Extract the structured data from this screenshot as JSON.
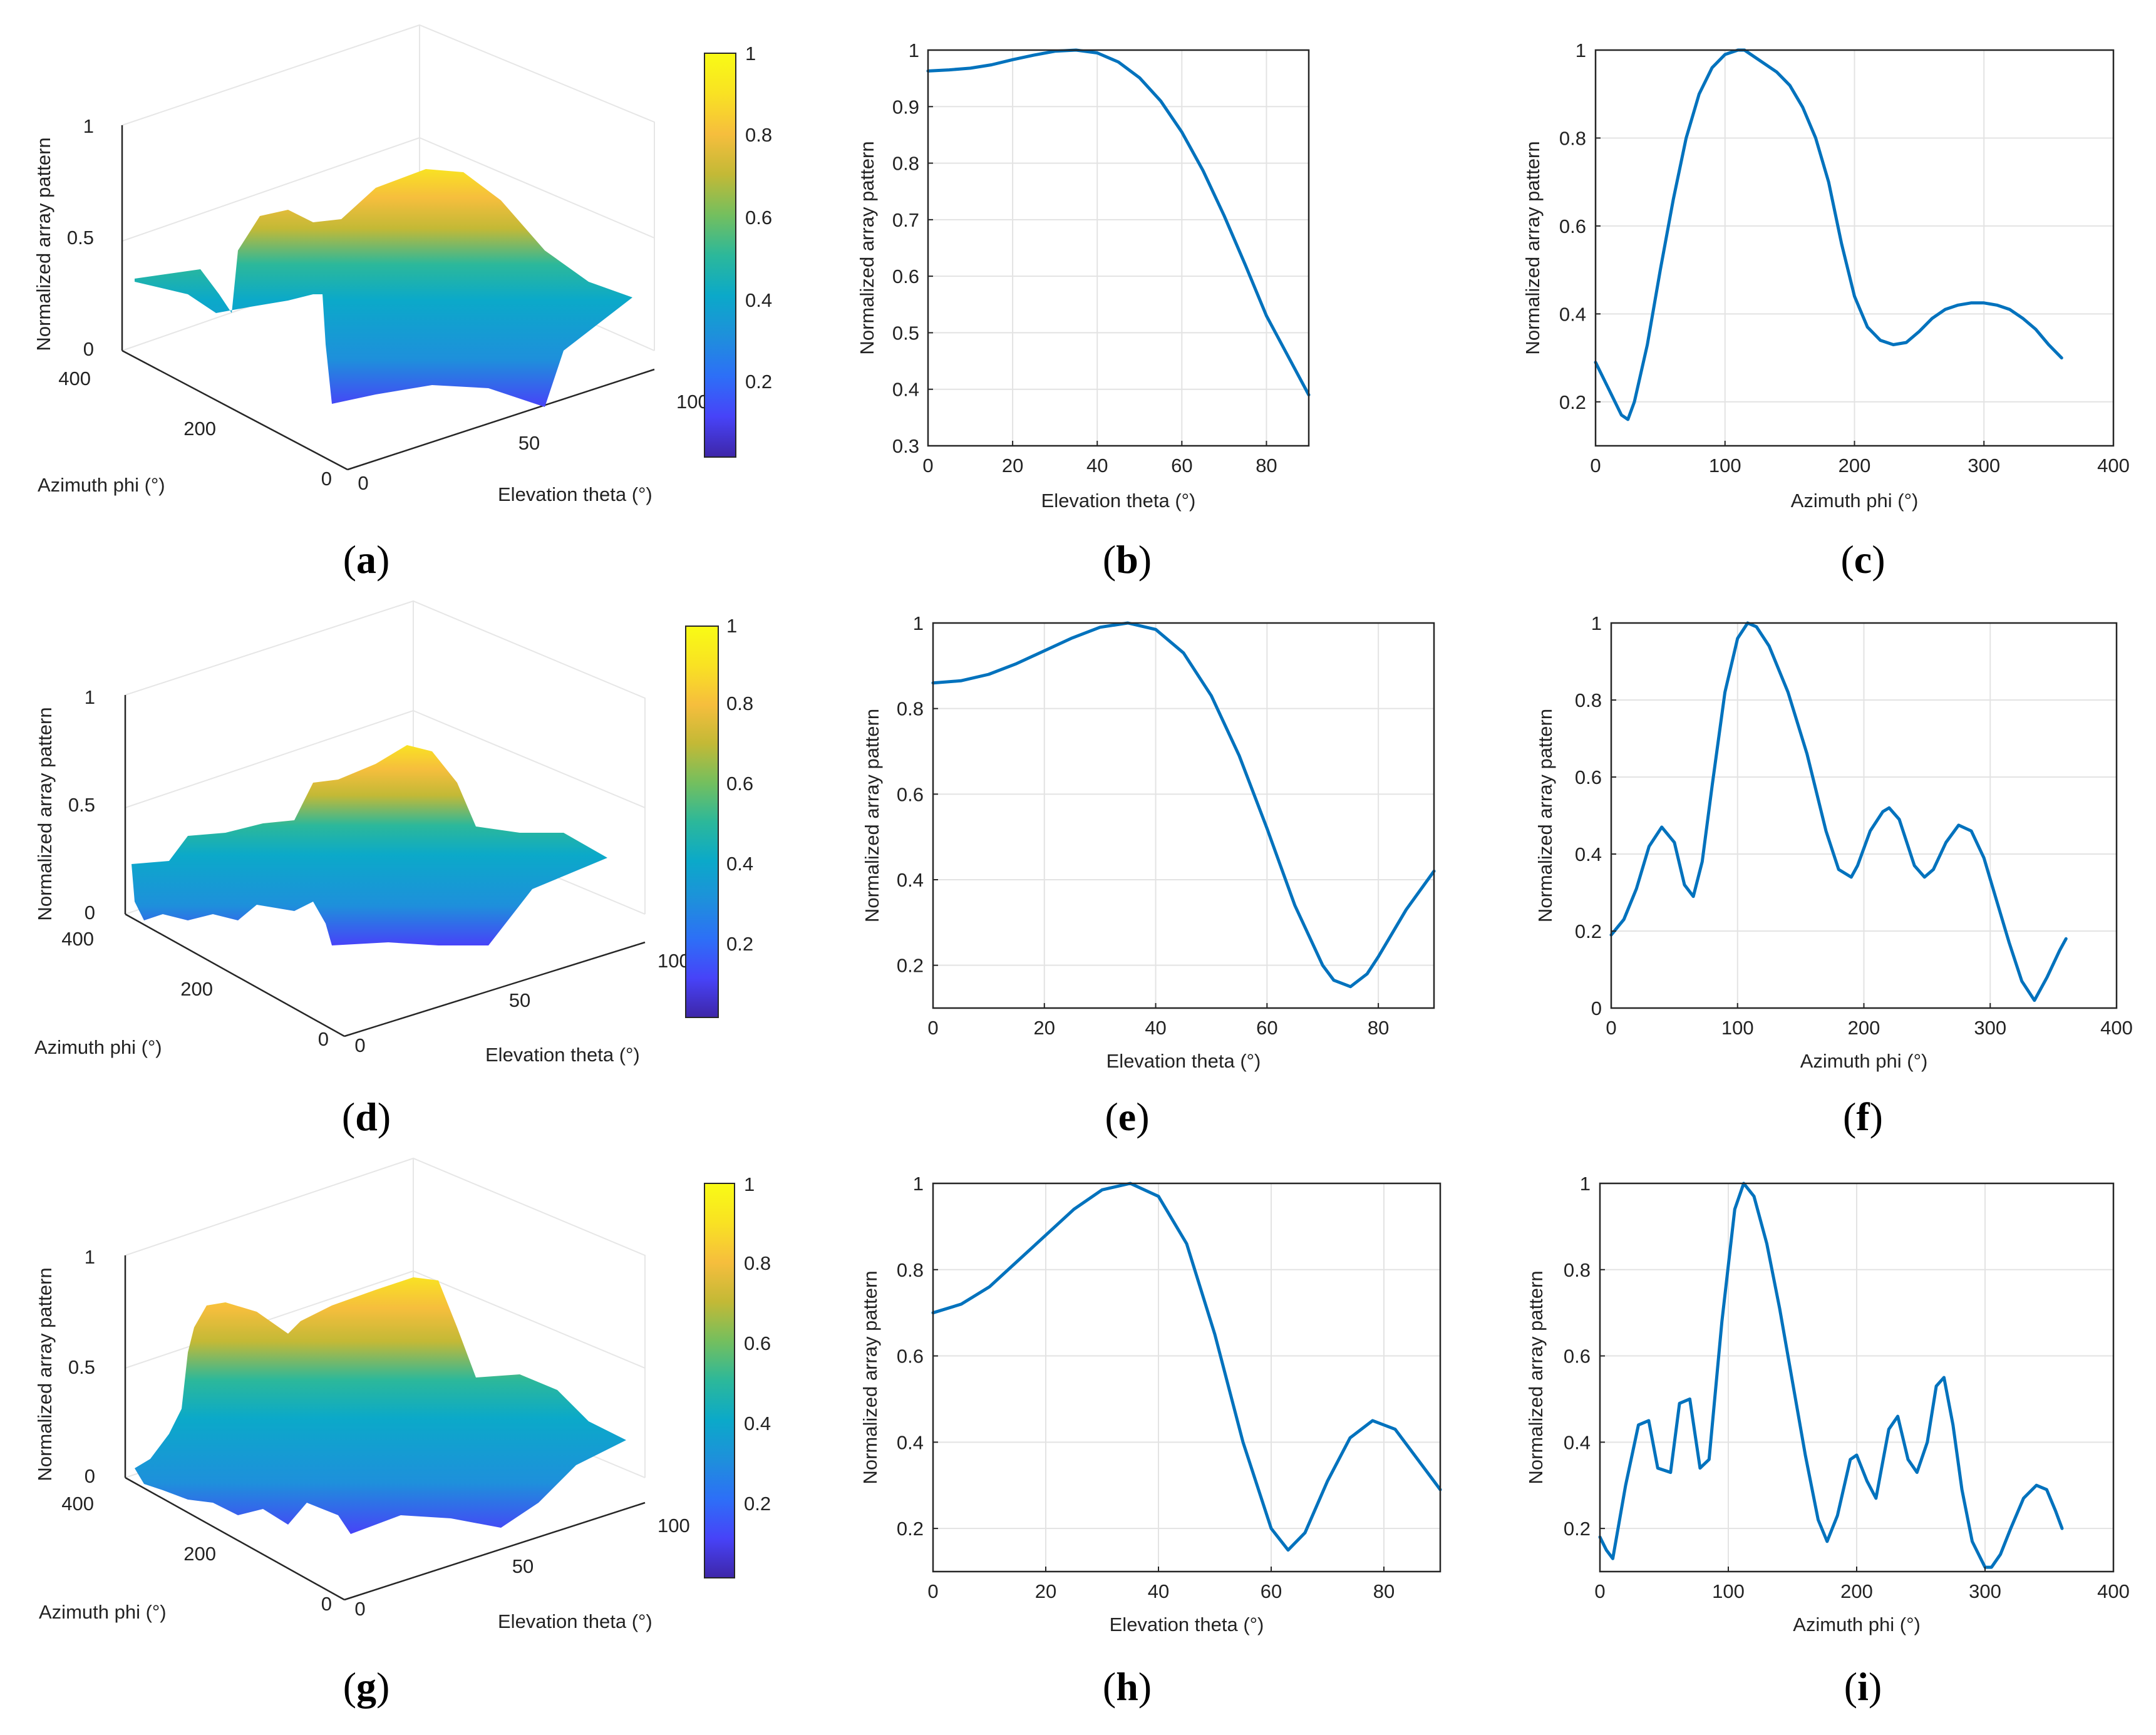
{
  "colors": {
    "line": "#0072bd",
    "grid": "#e3e3e3",
    "axis": "#262626",
    "parula": [
      "#3e26a8",
      "#4743f8",
      "#2d6ff7",
      "#1e90db",
      "#0ba9c9",
      "#2cb89a",
      "#74bf5e",
      "#c3b936",
      "#f6be3d",
      "#f9e223",
      "#f9fb15"
    ]
  },
  "chart_data": [
    {
      "id": "a",
      "panel_label": "a",
      "type": "surface",
      "zlabel": "Normalized array pattern",
      "xlabel": "Azimuth phi (°)",
      "ylabel": "Elevation theta (°)",
      "zticks": [
        "0",
        "0.5",
        "1"
      ],
      "xticks": [
        "0",
        "200",
        "400"
      ],
      "yticks": [
        "0",
        "50",
        "100"
      ],
      "colorbar_ticks": [
        "0.2",
        "0.4",
        "0.6",
        "0.8",
        "1"
      ],
      "elevation_cut": [
        0.965,
        0.97,
        0.99,
        1.0,
        0.96,
        0.84,
        0.64,
        0.39
      ],
      "azimuth_cut": [
        0.29,
        0.16,
        0.45,
        0.85,
        1.0,
        0.92,
        0.72,
        0.34,
        0.4,
        0.42,
        0.3
      ]
    },
    {
      "id": "b",
      "panel_label": "b",
      "type": "line",
      "xlabel": "Elevation theta (°)",
      "ylabel": "Normalized array pattern",
      "xlim": [
        0,
        90
      ],
      "ylim": [
        0.3,
        1
      ],
      "xticks": [
        0,
        20,
        40,
        60,
        80
      ],
      "yticks": [
        0.3,
        0.4,
        0.5,
        0.6,
        0.7,
        0.8,
        0.9,
        1
      ],
      "ytick_labels": [
        "0.3",
        "0.4",
        "0.5",
        "0.6",
        "0.7",
        "0.8",
        "0.9",
        "1"
      ],
      "x": [
        0,
        5,
        10,
        15,
        20,
        25,
        30,
        35,
        40,
        45,
        50,
        55,
        60,
        65,
        70,
        75,
        80,
        85,
        90
      ],
      "y": [
        0.963,
        0.965,
        0.968,
        0.974,
        0.983,
        0.991,
        0.998,
        1.0,
        0.995,
        0.979,
        0.951,
        0.91,
        0.855,
        0.787,
        0.707,
        0.62,
        0.53,
        0.46,
        0.39
      ]
    },
    {
      "id": "c",
      "panel_label": "c",
      "type": "line",
      "xlabel": "Azimuth phi (°)",
      "ylabel": "Normalized array pattern",
      "xlim": [
        0,
        400
      ],
      "ylim": [
        0.1,
        1
      ],
      "xticks": [
        0,
        100,
        200,
        300,
        400
      ],
      "yticks": [
        0.2,
        0.4,
        0.6,
        0.8,
        1
      ],
      "ytick_labels": [
        "0.2",
        "0.4",
        "0.6",
        "0.8",
        "1"
      ],
      "x": [
        0,
        10,
        20,
        25,
        30,
        40,
        50,
        60,
        70,
        80,
        90,
        100,
        110,
        115,
        120,
        130,
        140,
        150,
        160,
        170,
        180,
        190,
        200,
        210,
        220,
        230,
        240,
        250,
        260,
        270,
        280,
        290,
        300,
        310,
        320,
        330,
        340,
        350,
        360
      ],
      "y": [
        0.29,
        0.23,
        0.17,
        0.16,
        0.2,
        0.33,
        0.5,
        0.66,
        0.8,
        0.9,
        0.96,
        0.99,
        1.0,
        1.0,
        0.99,
        0.97,
        0.95,
        0.92,
        0.87,
        0.8,
        0.7,
        0.56,
        0.44,
        0.37,
        0.34,
        0.33,
        0.335,
        0.36,
        0.39,
        0.41,
        0.42,
        0.425,
        0.425,
        0.42,
        0.41,
        0.39,
        0.365,
        0.33,
        0.3
      ]
    },
    {
      "id": "d",
      "panel_label": "d",
      "type": "surface",
      "zlabel": "Normalized array pattern",
      "xlabel": "Azimuth phi (°)",
      "ylabel": "Elevation theta (°)",
      "zticks": [
        "0",
        "0.5",
        "1"
      ],
      "xticks": [
        "0",
        "200",
        "400"
      ],
      "yticks": [
        "0",
        "50",
        "100"
      ],
      "colorbar_ticks": [
        "0.2",
        "0.4",
        "0.6",
        "0.8",
        "1"
      ],
      "elevation_cut": [
        0.86,
        0.88,
        0.96,
        1.0,
        0.9,
        0.6,
        0.3,
        0.18,
        0.42
      ],
      "azimuth_cut": [
        0.19,
        0.47,
        0.29,
        0.85,
        1.0,
        0.7,
        0.34,
        0.52,
        0.34,
        0.47,
        0.2,
        0.02,
        0.18
      ]
    },
    {
      "id": "e",
      "panel_label": "e",
      "type": "line",
      "xlabel": "Elevation theta (°)",
      "ylabel": "Normalized array pattern",
      "xlim": [
        0,
        90
      ],
      "ylim": [
        0.1,
        1
      ],
      "xticks": [
        0,
        20,
        40,
        60,
        80
      ],
      "yticks": [
        0.2,
        0.4,
        0.6,
        0.8,
        1
      ],
      "ytick_labels": [
        "0.2",
        "0.4",
        "0.6",
        "0.8",
        "1"
      ],
      "x": [
        0,
        5,
        10,
        15,
        20,
        25,
        30,
        35,
        40,
        45,
        50,
        55,
        60,
        65,
        70,
        72,
        75,
        78,
        80,
        85,
        90
      ],
      "y": [
        0.86,
        0.865,
        0.88,
        0.905,
        0.935,
        0.965,
        0.99,
        1.0,
        0.985,
        0.93,
        0.83,
        0.69,
        0.52,
        0.34,
        0.2,
        0.165,
        0.15,
        0.18,
        0.22,
        0.33,
        0.42
      ]
    },
    {
      "id": "f",
      "panel_label": "f",
      "type": "line",
      "xlabel": "Azimuth phi (°)",
      "ylabel": "Normalized array pattern",
      "xlim": [
        0,
        400
      ],
      "ylim": [
        0,
        1
      ],
      "xticks": [
        0,
        100,
        200,
        300,
        400
      ],
      "yticks": [
        0,
        0.2,
        0.4,
        0.6,
        0.8,
        1
      ],
      "ytick_labels": [
        "0",
        "0.2",
        "0.4",
        "0.6",
        "0.8",
        "1"
      ],
      "x": [
        0,
        10,
        20,
        30,
        40,
        50,
        58,
        65,
        72,
        80,
        90,
        100,
        108,
        115,
        125,
        140,
        155,
        170,
        180,
        190,
        195,
        205,
        215,
        220,
        228,
        240,
        248,
        255,
        265,
        275,
        285,
        295,
        305,
        315,
        325,
        335,
        345,
        355,
        360
      ],
      "y": [
        0.19,
        0.23,
        0.31,
        0.42,
        0.47,
        0.43,
        0.32,
        0.29,
        0.38,
        0.58,
        0.82,
        0.96,
        1.0,
        0.99,
        0.94,
        0.82,
        0.66,
        0.46,
        0.36,
        0.34,
        0.37,
        0.46,
        0.51,
        0.52,
        0.49,
        0.37,
        0.34,
        0.36,
        0.43,
        0.475,
        0.46,
        0.39,
        0.28,
        0.17,
        0.07,
        0.02,
        0.08,
        0.15,
        0.18
      ]
    },
    {
      "id": "g",
      "panel_label": "g",
      "type": "surface",
      "zlabel": "Normalized array pattern",
      "xlabel": "Azimuth phi (°)",
      "ylabel": "Elevation theta (°)",
      "zticks": [
        "0",
        "0.5",
        "1"
      ],
      "xticks": [
        "0",
        "200",
        "400"
      ],
      "yticks": [
        "0",
        "50",
        "100"
      ],
      "colorbar_ticks": [
        "0.2",
        "0.4",
        "0.6",
        "0.8",
        "1"
      ],
      "elevation_cut": [
        0.7,
        0.78,
        0.92,
        1.0,
        0.85,
        0.45,
        0.15,
        0.35,
        0.45,
        0.29
      ],
      "azimuth_cut": [
        0.18,
        0.45,
        0.32,
        0.5,
        0.33,
        0.9,
        1.0,
        0.6,
        0.17,
        0.37,
        0.27,
        0.46,
        0.33,
        0.55,
        0.11,
        0.3,
        0.2
      ]
    },
    {
      "id": "h",
      "panel_label": "h",
      "type": "line",
      "xlabel": "Elevation theta (°)",
      "ylabel": "Normalized array pattern",
      "xlim": [
        0,
        90
      ],
      "ylim": [
        0.1,
        1
      ],
      "xticks": [
        0,
        20,
        40,
        60,
        80
      ],
      "yticks": [
        0.2,
        0.4,
        0.6,
        0.8,
        1
      ],
      "ytick_labels": [
        "0.2",
        "0.4",
        "0.6",
        "0.8",
        "1"
      ],
      "x": [
        0,
        5,
        10,
        15,
        20,
        25,
        30,
        35,
        40,
        45,
        50,
        55,
        60,
        63,
        66,
        70,
        74,
        78,
        82,
        86,
        90
      ],
      "y": [
        0.7,
        0.72,
        0.76,
        0.82,
        0.88,
        0.94,
        0.985,
        1.0,
        0.97,
        0.86,
        0.65,
        0.4,
        0.2,
        0.15,
        0.19,
        0.31,
        0.41,
        0.45,
        0.43,
        0.36,
        0.29
      ]
    },
    {
      "id": "i",
      "panel_label": "i",
      "type": "line",
      "xlabel": "Azimuth phi (°)",
      "ylabel": "Normalized array pattern",
      "xlim": [
        0,
        400
      ],
      "ylim": [
        0.1,
        1
      ],
      "xticks": [
        0,
        100,
        200,
        300,
        400
      ],
      "yticks": [
        0.2,
        0.4,
        0.6,
        0.8,
        1
      ],
      "ytick_labels": [
        "0.2",
        "0.4",
        "0.6",
        "0.8",
        "1"
      ],
      "x": [
        0,
        5,
        10,
        20,
        30,
        38,
        45,
        55,
        62,
        70,
        78,
        85,
        95,
        105,
        112,
        120,
        130,
        140,
        150,
        160,
        170,
        177,
        185,
        195,
        200,
        208,
        215,
        225,
        232,
        240,
        247,
        255,
        262,
        268,
        275,
        282,
        290,
        300,
        305,
        312,
        320,
        330,
        340,
        348,
        355,
        360
      ],
      "y": [
        0.18,
        0.15,
        0.13,
        0.3,
        0.44,
        0.45,
        0.34,
        0.33,
        0.49,
        0.5,
        0.34,
        0.36,
        0.68,
        0.94,
        1.0,
        0.97,
        0.86,
        0.71,
        0.54,
        0.37,
        0.22,
        0.17,
        0.23,
        0.36,
        0.37,
        0.31,
        0.27,
        0.43,
        0.46,
        0.36,
        0.33,
        0.4,
        0.53,
        0.55,
        0.44,
        0.29,
        0.17,
        0.11,
        0.11,
        0.14,
        0.2,
        0.27,
        0.3,
        0.29,
        0.24,
        0.2
      ]
    }
  ]
}
